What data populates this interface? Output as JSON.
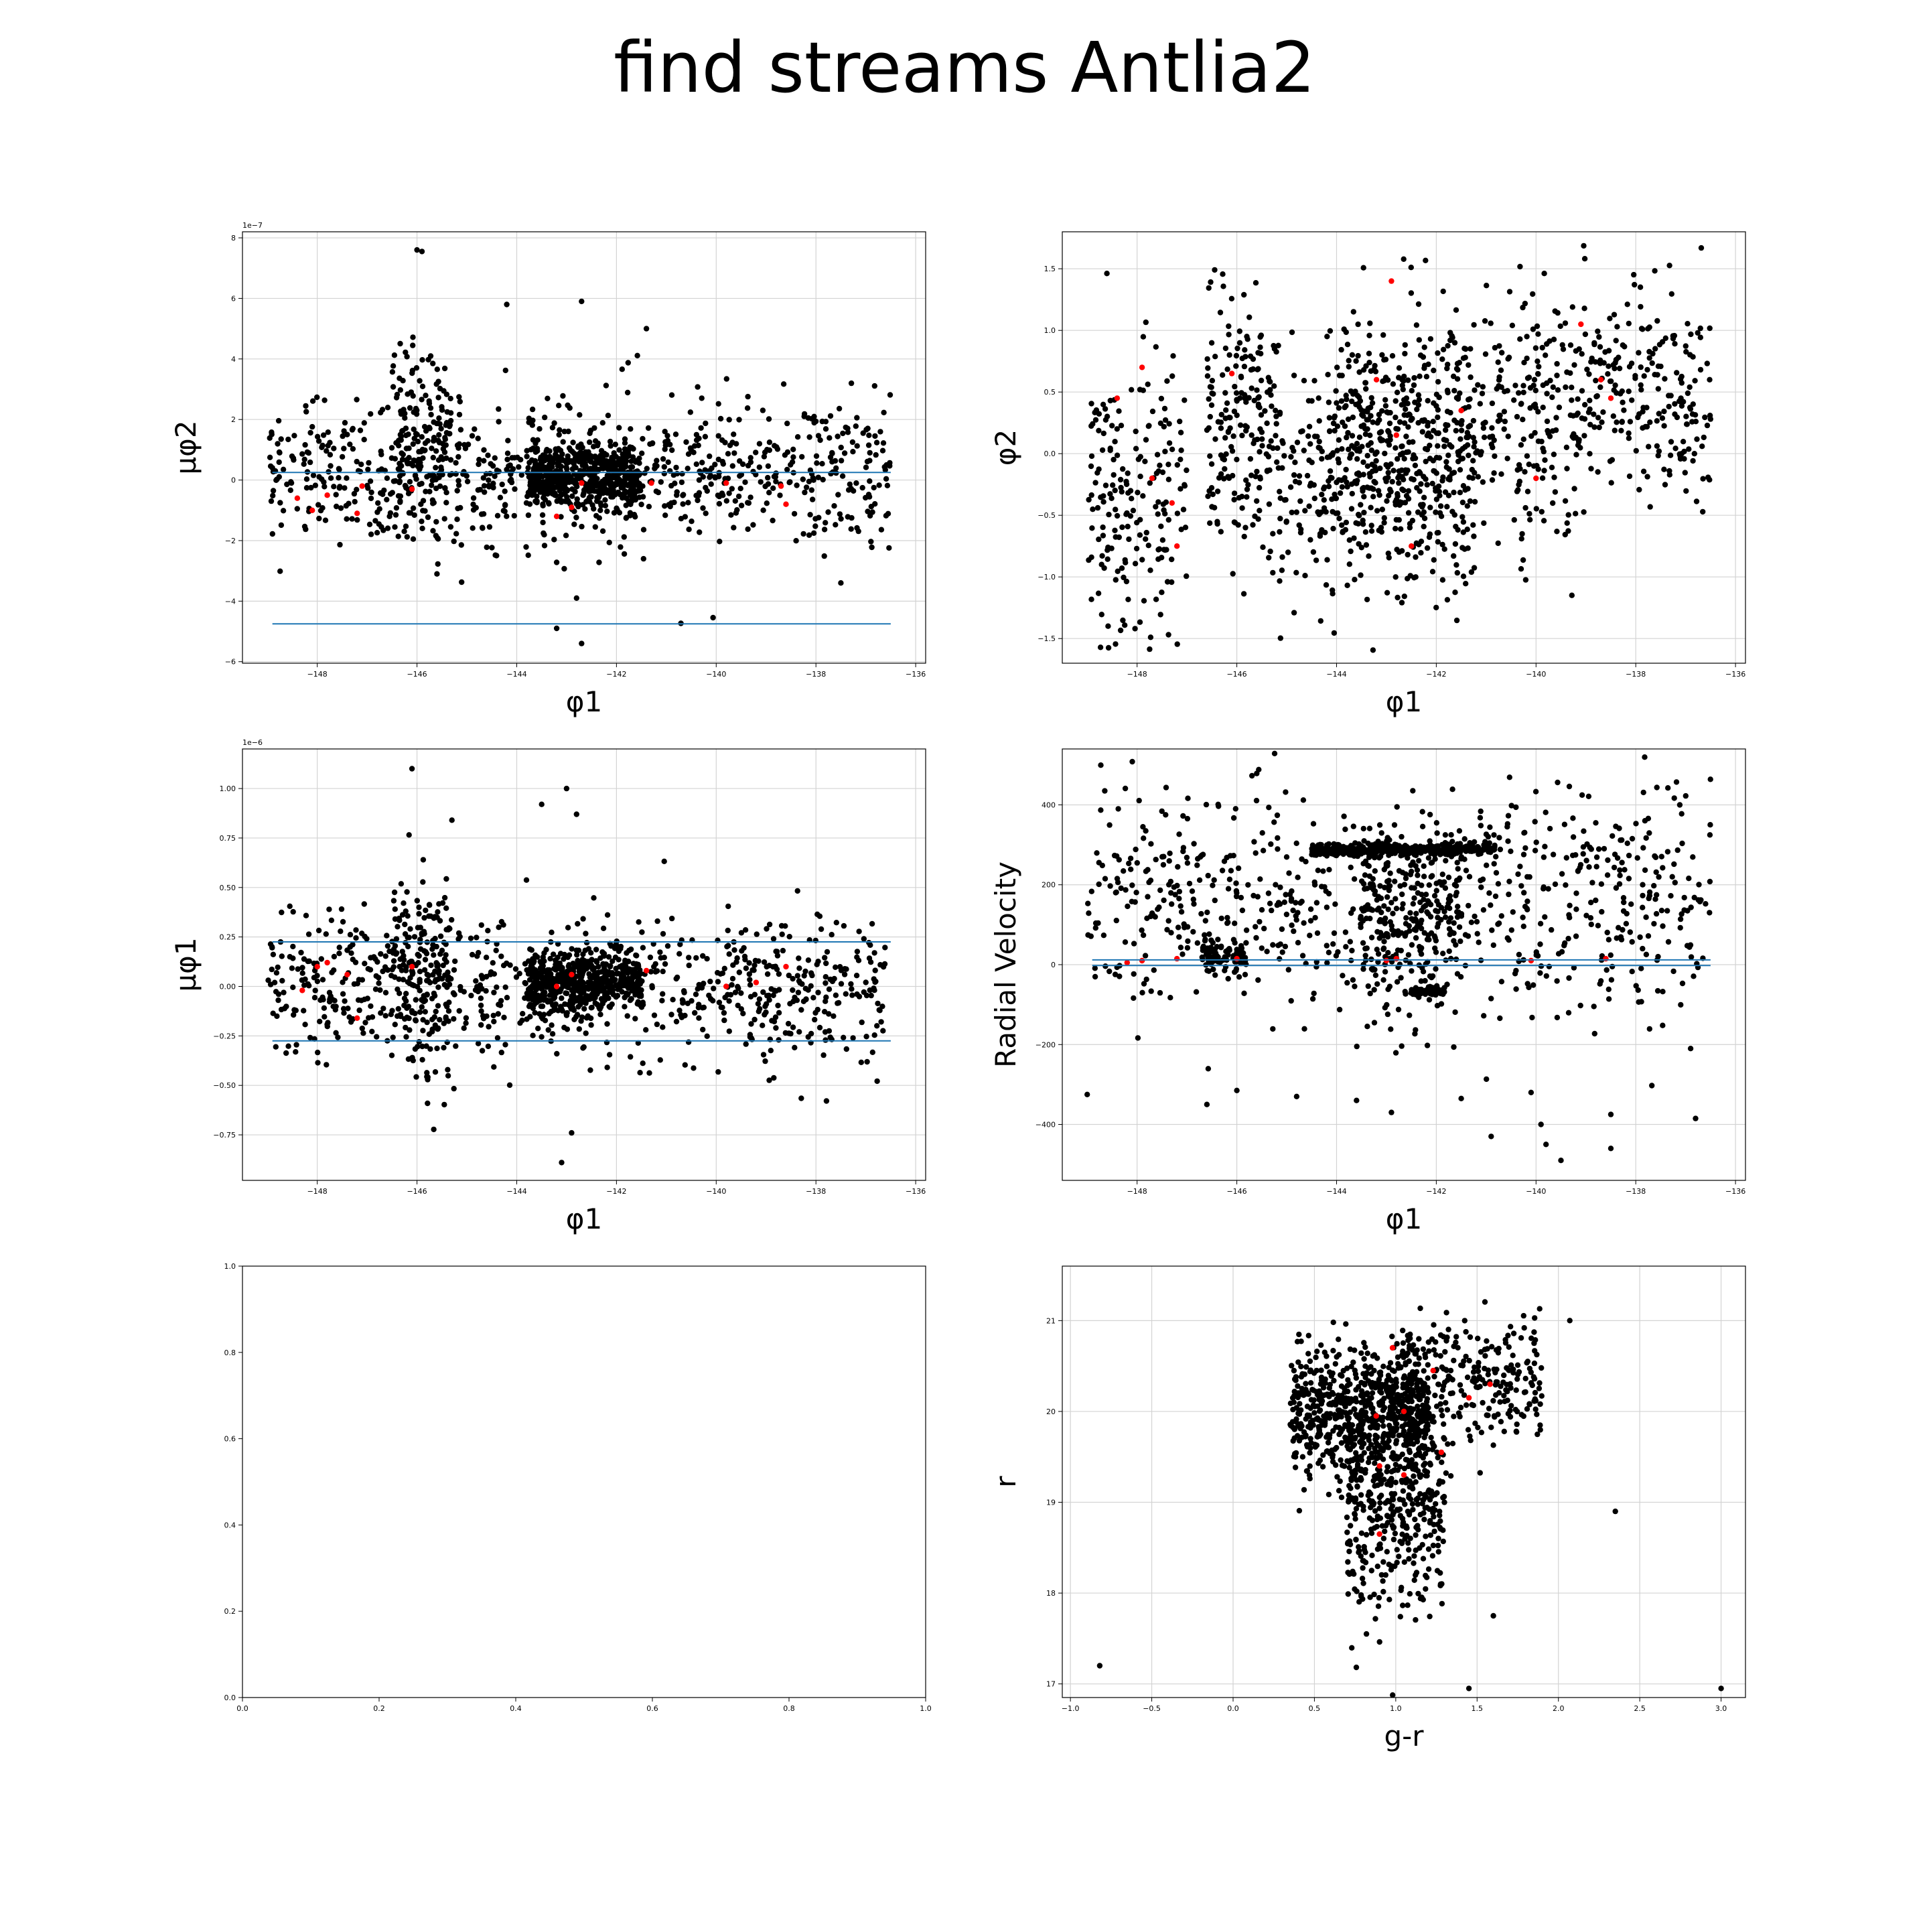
{
  "title": "find streams Antlia2",
  "colors": {
    "stars": "#000000",
    "members": "#ff0000",
    "lines": "#1f77b4",
    "grid": "#d3d3d3"
  },
  "chart_data": [
    {
      "id": "pm-phi2",
      "type": "scatter",
      "title": "",
      "xlabel": "φ1",
      "ylabel": "μφ2",
      "y_offset_label": "1e−7",
      "xlim": [
        -149.5,
        -135.8
      ],
      "ylim": [
        -6.05,
        8.2
      ],
      "x_inverted_ticks": true,
      "xticks": [
        -148,
        -146,
        -144,
        -142,
        -140,
        -138,
        -136
      ],
      "yticks": [
        -6,
        -4,
        -2,
        0,
        2,
        4,
        6,
        8
      ],
      "grid": true,
      "hlines": [
        {
          "y": 0.25,
          "x": [
            -148.9,
            -136.5
          ]
        },
        {
          "y": -4.75,
          "x": [
            -148.9,
            -136.5
          ]
        }
      ],
      "field_stars": {
        "count": 1500,
        "clusters": [
          {
            "x": [
              -149,
              -136.5
            ],
            "ymean": 0.3,
            "ysd": 1.2,
            "w": 0.55
          },
          {
            "x": [
              -143.8,
              -141.5
            ],
            "ymean": 0.1,
            "ysd": 0.5,
            "w": 0.35
          },
          {
            "x": [
              -146.5,
              -145.3
            ],
            "ymean": 1.5,
            "ysd": 1.6,
            "w": 0.1
          }
        ],
        "outliers": [
          [
            -146.0,
            7.6
          ],
          [
            -145.9,
            7.55
          ],
          [
            -144.2,
            5.8
          ],
          [
            -142.7,
            5.9
          ],
          [
            -141.4,
            5.0
          ],
          [
            -143.2,
            -4.9
          ],
          [
            -142.7,
            -5.4
          ],
          [
            -142.8,
            -3.9
          ],
          [
            -145.6,
            -3.1
          ],
          [
            -137.5,
            -3.4
          ]
        ]
      },
      "members": [
        [
          -148.4,
          -0.6
        ],
        [
          -148.1,
          -1.0
        ],
        [
          -147.8,
          -0.5
        ],
        [
          -147.2,
          -1.1
        ],
        [
          -147.1,
          -0.2
        ],
        [
          -146.1,
          -0.3
        ],
        [
          -143.2,
          -1.2
        ],
        [
          -142.9,
          -0.9
        ],
        [
          -142.7,
          -0.1
        ],
        [
          -141.3,
          -0.1
        ],
        [
          -139.8,
          -0.1
        ],
        [
          -138.7,
          -0.2
        ],
        [
          -138.6,
          -0.8
        ]
      ]
    },
    {
      "id": "phi2",
      "type": "scatter",
      "title": "",
      "xlabel": "φ1",
      "ylabel": "φ2",
      "xlim": [
        -149.5,
        -135.8
      ],
      "ylim": [
        -1.7,
        1.8
      ],
      "x_inverted_ticks": true,
      "xticks": [
        -148,
        -146,
        -144,
        -142,
        -140,
        -138,
        -136
      ],
      "yticks": [
        -1.5,
        -1.0,
        -0.5,
        0.0,
        0.5,
        1.0,
        1.5
      ],
      "grid": true,
      "hlines": [],
      "field_stars": {
        "count": 1500,
        "clusters": [
          {
            "x": [
              -149,
              -147
            ],
            "ymean": -0.3,
            "ysd": 0.55,
            "w": 0.13
          },
          {
            "x": [
              -146.6,
              -145.2
            ],
            "ymean": 0.2,
            "ysd": 0.5,
            "w": 0.13
          },
          {
            "x": [
              -145.2,
              -144.2
            ],
            "ymean": -0.2,
            "ysd": 0.45,
            "w": 0.06
          },
          {
            "x": [
              -144.2,
              -141.2
            ],
            "ymean": 0.0,
            "ysd": 0.55,
            "w": 0.4
          },
          {
            "x": [
              -141.2,
              -139.0
            ],
            "ymean": 0.3,
            "ysd": 0.5,
            "w": 0.14
          },
          {
            "x": [
              -139.0,
              -136.5
            ],
            "ymean": 0.5,
            "ysd": 0.45,
            "w": 0.14
          }
        ],
        "outliers": []
      },
      "members": [
        [
          -148.4,
          0.45
        ],
        [
          -147.9,
          0.7
        ],
        [
          -147.7,
          -0.2
        ],
        [
          -147.3,
          -0.4
        ],
        [
          -147.2,
          -0.75
        ],
        [
          -146.1,
          0.65
        ],
        [
          -143.2,
          0.6
        ],
        [
          -142.9,
          1.4
        ],
        [
          -142.8,
          0.15
        ],
        [
          -142.5,
          -0.75
        ],
        [
          -141.5,
          0.35
        ],
        [
          -140.0,
          -0.2
        ],
        [
          -139.1,
          1.05
        ],
        [
          -138.7,
          0.6
        ],
        [
          -138.5,
          0.45
        ]
      ]
    },
    {
      "id": "pm-phi1",
      "type": "scatter",
      "title": "",
      "xlabel": "φ1",
      "ylabel": "μφ1",
      "y_offset_label": "1e−6",
      "xlim": [
        -149.5,
        -135.8
      ],
      "ylim": [
        -0.98,
        1.2
      ],
      "x_inverted_ticks": true,
      "xticks": [
        -148,
        -146,
        -144,
        -142,
        -140,
        -138,
        -136
      ],
      "yticks": [
        -0.75,
        -0.5,
        -0.25,
        0.0,
        0.25,
        0.5,
        0.75,
        1.0
      ],
      "grid": true,
      "hlines": [
        {
          "y": 0.225,
          "x": [
            -148.9,
            -136.5
          ]
        },
        {
          "y": -0.275,
          "x": [
            -148.9,
            -136.5
          ]
        }
      ],
      "field_stars": {
        "count": 1500,
        "clusters": [
          {
            "x": [
              -149,
              -136.5
            ],
            "ymean": -0.02,
            "ysd": 0.18,
            "w": 0.55
          },
          {
            "x": [
              -143.8,
              -141.5
            ],
            "ymean": 0.02,
            "ysd": 0.07,
            "w": 0.35
          },
          {
            "x": [
              -146.5,
              -145.3
            ],
            "ymean": 0.1,
            "ysd": 0.25,
            "w": 0.1
          }
        ],
        "outliers": [
          [
            -146.1,
            1.1
          ],
          [
            -143.0,
            1.0
          ],
          [
            -142.8,
            0.87
          ],
          [
            -145.3,
            0.84
          ],
          [
            -143.5,
            0.92
          ],
          [
            -142.9,
            -0.74
          ],
          [
            -143.1,
            -0.89
          ]
        ]
      },
      "members": [
        [
          -148.3,
          -0.02
        ],
        [
          -148.0,
          0.1
        ],
        [
          -147.8,
          0.12
        ],
        [
          -147.4,
          0.06
        ],
        [
          -147.2,
          -0.16
        ],
        [
          -146.1,
          0.1
        ],
        [
          -143.2,
          0.0
        ],
        [
          -142.9,
          0.06
        ],
        [
          -141.4,
          0.08
        ],
        [
          -139.8,
          0.0
        ],
        [
          -139.2,
          0.02
        ],
        [
          -138.6,
          0.1
        ]
      ]
    },
    {
      "id": "rv",
      "type": "scatter",
      "title": "",
      "xlabel": "φ1",
      "ylabel": "Radial Velocity",
      "xlim": [
        -149.5,
        -135.8
      ],
      "ylim": [
        -540,
        540
      ],
      "x_inverted_ticks": true,
      "xticks": [
        -148,
        -146,
        -144,
        -142,
        -140,
        -138,
        -136
      ],
      "yticks": [
        -400,
        -200,
        0,
        200,
        400
      ],
      "grid": true,
      "hlines": [
        {
          "y": 12,
          "x": [
            -148.9,
            -136.5
          ]
        },
        {
          "y": -2,
          "x": [
            -148.9,
            -136.5
          ]
        }
      ],
      "field_stars": {
        "count": 1500,
        "clusters": [
          {
            "x": [
              -149,
              -136.5
            ],
            "ymean": 150,
            "ysd": 140,
            "w": 0.5
          },
          {
            "x": [
              -144.5,
              -140.8
            ],
            "ymean": 288,
            "ysd": 8,
            "w": 0.25
          },
          {
            "x": [
              -146.7,
              -145.8
            ],
            "ymean": 25,
            "ysd": 20,
            "w": 0.06
          },
          {
            "x": [
              -143.5,
              -141.5
            ],
            "ymean": 120,
            "ysd": 110,
            "w": 0.15
          },
          {
            "x": [
              -142.5,
              -141.8
            ],
            "ymean": -68,
            "ysd": 5,
            "w": 0.04
          }
        ],
        "outliers": [
          [
            -149.0,
            -325
          ],
          [
            -146.6,
            -350
          ],
          [
            -146.0,
            -315
          ],
          [
            -144.8,
            -330
          ],
          [
            -143.6,
            -340
          ],
          [
            -142.9,
            -370
          ],
          [
            -141.5,
            -335
          ],
          [
            -140.9,
            -430
          ],
          [
            -140.1,
            -320
          ],
          [
            -139.9,
            -400
          ],
          [
            -139.8,
            -450
          ],
          [
            -139.5,
            -490
          ],
          [
            -138.5,
            -460
          ],
          [
            -138.5,
            -375
          ],
          [
            -136.8,
            -385
          ],
          [
            -136.9,
            -210
          ]
        ]
      },
      "members": [
        [
          -148.2,
          5
        ],
        [
          -147.9,
          10
        ],
        [
          -147.2,
          15
        ],
        [
          -146.0,
          15
        ],
        [
          -143.0,
          10
        ],
        [
          -142.8,
          15
        ],
        [
          -140.1,
          10
        ],
        [
          -138.6,
          15
        ]
      ]
    },
    {
      "id": "empty",
      "type": "scatter",
      "title": "",
      "xlabel": "",
      "ylabel": "",
      "xlim": [
        0,
        1
      ],
      "ylim": [
        0,
        1
      ],
      "xticks": [
        0.0,
        0.2,
        0.4,
        0.6,
        0.8,
        1.0
      ],
      "yticks": [
        0.0,
        0.2,
        0.4,
        0.6,
        0.8,
        1.0
      ],
      "grid": false,
      "hlines": [],
      "field_stars": {
        "count": 0,
        "clusters": [],
        "outliers": []
      },
      "members": []
    },
    {
      "id": "cmd",
      "type": "scatter",
      "title": "",
      "xlabel": "g-r",
      "ylabel": "r",
      "xlim": [
        -1.05,
        3.15
      ],
      "ylim": [
        16.85,
        21.6
      ],
      "xticks": [
        -1.0,
        -0.5,
        0.0,
        0.5,
        1.0,
        1.5,
        2.0,
        2.5,
        3.0
      ],
      "yticks": [
        17,
        18,
        19,
        20,
        21
      ],
      "grid": true,
      "hlines": [],
      "field_stars": {
        "count": 1400,
        "clusters": [
          {
            "x": [
              0.35,
              1.2
            ],
            "ymean": 20.0,
            "ysd": 0.35,
            "w": 0.5
          },
          {
            "x": [
              0.7,
              1.3
            ],
            "ymean": 19.0,
            "ysd": 0.6,
            "w": 0.3
          },
          {
            "x": [
              1.0,
              1.9
            ],
            "ymean": 20.3,
            "ysd": 0.35,
            "w": 0.2
          }
        ],
        "outliers": [
          [
            -0.82,
            17.2
          ],
          [
            3.0,
            16.95
          ],
          [
            1.45,
            16.95
          ],
          [
            2.35,
            18.9
          ],
          [
            2.07,
            21.0
          ],
          [
            1.6,
            17.75
          ],
          [
            0.82,
            17.55
          ]
        ]
      },
      "members": [
        [
          0.98,
          20.7
        ],
        [
          1.23,
          20.45
        ],
        [
          1.45,
          20.15
        ],
        [
          1.58,
          20.3
        ],
        [
          0.88,
          19.95
        ],
        [
          1.05,
          20.0
        ],
        [
          1.28,
          19.55
        ],
        [
          0.9,
          19.4
        ],
        [
          1.05,
          19.3
        ],
        [
          0.9,
          18.65
        ]
      ]
    }
  ]
}
